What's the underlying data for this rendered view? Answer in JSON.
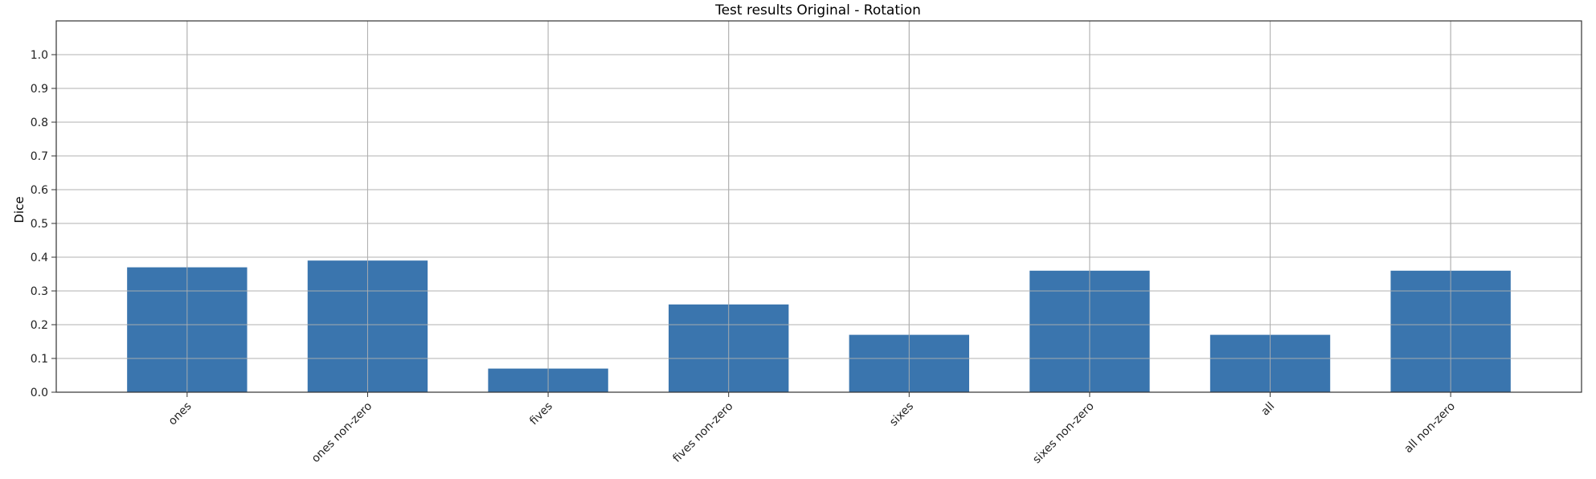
{
  "chart_data": {
    "type": "bar",
    "title": "Test results Original - Rotation",
    "xlabel": "",
    "ylabel": "Dice",
    "categories": [
      "ones",
      "ones non-zero",
      "fives",
      "fives non-zero",
      "sixes",
      "sixes non-zero",
      "all",
      "all non-zero"
    ],
    "values": [
      0.37,
      0.39,
      0.07,
      0.26,
      0.17,
      0.36,
      0.17,
      0.36
    ],
    "ylim": [
      0.0,
      1.1
    ],
    "yticks": [
      "0.0",
      "0.1",
      "0.2",
      "0.3",
      "0.4",
      "0.5",
      "0.6",
      "0.7",
      "0.8",
      "0.9",
      "1.0"
    ],
    "grid": true,
    "bar_color": "#3a75ae"
  }
}
